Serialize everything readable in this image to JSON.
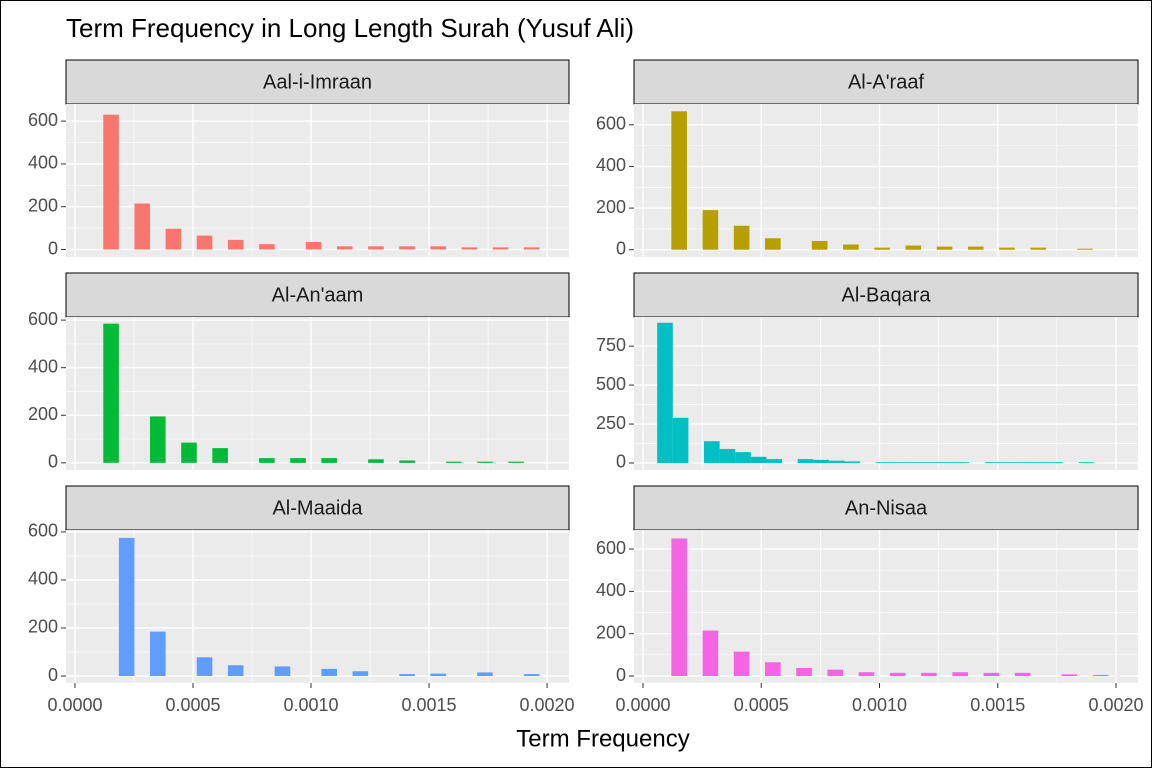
{
  "title": "Term Frequency in Long Length Surah (Yusuf Ali)",
  "x_label": "Term Frequency",
  "xlim": [
    -3.8e-05,
    0.002093
  ],
  "xticks": [
    {
      "value": 0,
      "label": "0.0000"
    },
    {
      "value": 0.0005,
      "label": "0.0005"
    },
    {
      "value": 0.001,
      "label": "0.0010"
    },
    {
      "value": 0.0015,
      "label": "0.0015"
    },
    {
      "value": 0.002,
      "label": "0.0020"
    }
  ],
  "grid": true,
  "chart_data": [
    {
      "type": "histogram",
      "title": "Aal-i-Imraan",
      "color": "#F8766D",
      "bins": [
        0.00012,
        0.000186,
        0.000252,
        0.000318,
        0.000384,
        0.00045,
        0.000516,
        0.000582,
        0.000648,
        0.000714,
        0.00078,
        0.000846,
        0.000912,
        0.000978,
        0.001044,
        0.00111,
        0.001176,
        0.001242,
        0.001308,
        0.001374,
        0.00144,
        0.001506,
        0.001572,
        0.001638,
        0.001704,
        0.00177,
        0.001836,
        0.001902,
        0.001968
      ],
      "values": [
        630,
        0,
        215,
        0,
        97,
        0,
        65,
        0,
        45,
        0,
        25,
        0,
        0,
        35,
        0,
        15,
        0,
        15,
        0,
        15,
        0,
        15,
        0,
        10,
        0,
        10,
        0,
        10
      ],
      "ylim": [
        -35,
        680
      ],
      "yticks": [
        0,
        200,
        400,
        600
      ]
    },
    {
      "type": "histogram",
      "title": "Al-A'raaf",
      "color": "#B79F00",
      "bins": [
        0.00012,
        0.000186,
        0.000252,
        0.000318,
        0.000384,
        0.00045,
        0.000516,
        0.000582,
        0.000648,
        0.000714,
        0.00078,
        0.000846,
        0.000912,
        0.000978,
        0.001044,
        0.00111,
        0.001176,
        0.001242,
        0.001308,
        0.001374,
        0.00144,
        0.001506,
        0.001572,
        0.001638,
        0.001704,
        0.00177,
        0.001836,
        0.001902,
        0.001968
      ],
      "values": [
        665,
        0,
        190,
        0,
        115,
        0,
        55,
        0,
        0,
        42,
        0,
        25,
        0,
        10,
        0,
        20,
        0,
        15,
        0,
        15,
        0,
        10,
        0,
        10,
        0,
        0,
        5,
        0
      ],
      "ylim": [
        -35,
        700
      ],
      "yticks": [
        0,
        200,
        400,
        600
      ]
    },
    {
      "type": "histogram",
      "title": "Al-An'aam",
      "color": "#00BA38",
      "bins": [
        0.00012,
        0.000186,
        0.000252,
        0.000318,
        0.000384,
        0.00045,
        0.000516,
        0.000582,
        0.000648,
        0.000714,
        0.00078,
        0.000846,
        0.000912,
        0.000978,
        0.001044,
        0.00111,
        0.001176,
        0.001242,
        0.001308,
        0.001374,
        0.00144,
        0.001506,
        0.001572,
        0.001638,
        0.001704,
        0.00177,
        0.001836,
        0.001902,
        0.001968
      ],
      "values": [
        585,
        0,
        0,
        195,
        0,
        85,
        0,
        62,
        0,
        0,
        20,
        0,
        20,
        0,
        20,
        0,
        0,
        15,
        0,
        10,
        0,
        0,
        5,
        0,
        5,
        0,
        5,
        0
      ],
      "ylim": [
        -30,
        613
      ],
      "yticks": [
        0,
        200,
        400,
        600
      ]
    },
    {
      "type": "histogram",
      "title": "Al-Baqara",
      "color": "#00BFC4",
      "bins": [
        6e-05,
        0.000126,
        0.000192,
        0.000258,
        0.000324,
        0.00039,
        0.000456,
        0.000522,
        0.000588,
        0.000654,
        0.00072,
        0.000786,
        0.000852,
        0.000918,
        0.000984,
        0.00105,
        0.001116,
        0.001182,
        0.001248,
        0.001314,
        0.00138,
        0.001446,
        0.001512,
        0.001578,
        0.001644,
        0.00171,
        0.001776,
        0.001842,
        0.001908
      ],
      "values": [
        900,
        290,
        0,
        140,
        90,
        70,
        40,
        25,
        0,
        25,
        20,
        15,
        10,
        0,
        5,
        5,
        5,
        5,
        5,
        5,
        0,
        5,
        5,
        5,
        5,
        5,
        0,
        5
      ],
      "ylim": [
        -45,
        937
      ],
      "yticks": [
        0,
        250,
        500,
        750
      ]
    },
    {
      "type": "histogram",
      "title": "Al-Maaida",
      "color": "#619CFF",
      "bins": [
        0.00012,
        0.000186,
        0.000252,
        0.000318,
        0.000384,
        0.00045,
        0.000516,
        0.000582,
        0.000648,
        0.000714,
        0.00078,
        0.000846,
        0.000912,
        0.000978,
        0.001044,
        0.00111,
        0.001176,
        0.001242,
        0.001308,
        0.001374,
        0.00144,
        0.001506,
        0.001572,
        0.001638,
        0.001704,
        0.00177,
        0.001836,
        0.001902,
        0.001968
      ],
      "values": [
        0,
        575,
        0,
        185,
        0,
        0,
        78,
        0,
        45,
        0,
        0,
        40,
        0,
        0,
        30,
        0,
        20,
        0,
        0,
        8,
        0,
        10,
        0,
        0,
        15,
        0,
        0,
        8
      ],
      "ylim": [
        -29,
        608
      ],
      "yticks": [
        0,
        200,
        400,
        600
      ]
    },
    {
      "type": "histogram",
      "title": "An-Nisaa",
      "color": "#F564E3",
      "bins": [
        0.00012,
        0.000186,
        0.000252,
        0.000318,
        0.000384,
        0.00045,
        0.000516,
        0.000582,
        0.000648,
        0.000714,
        0.00078,
        0.000846,
        0.000912,
        0.000978,
        0.001044,
        0.00111,
        0.001176,
        0.001242,
        0.001308,
        0.001374,
        0.00144,
        0.001506,
        0.001572,
        0.001638,
        0.001704,
        0.00177,
        0.001836,
        0.001902,
        0.001968
      ],
      "values": [
        650,
        0,
        215,
        0,
        115,
        0,
        65,
        0,
        38,
        0,
        30,
        0,
        18,
        0,
        15,
        0,
        15,
        0,
        18,
        0,
        15,
        0,
        15,
        0,
        0,
        8,
        0,
        5
      ],
      "ylim": [
        -33,
        690
      ],
      "yticks": [
        0,
        200,
        400,
        600
      ]
    }
  ]
}
